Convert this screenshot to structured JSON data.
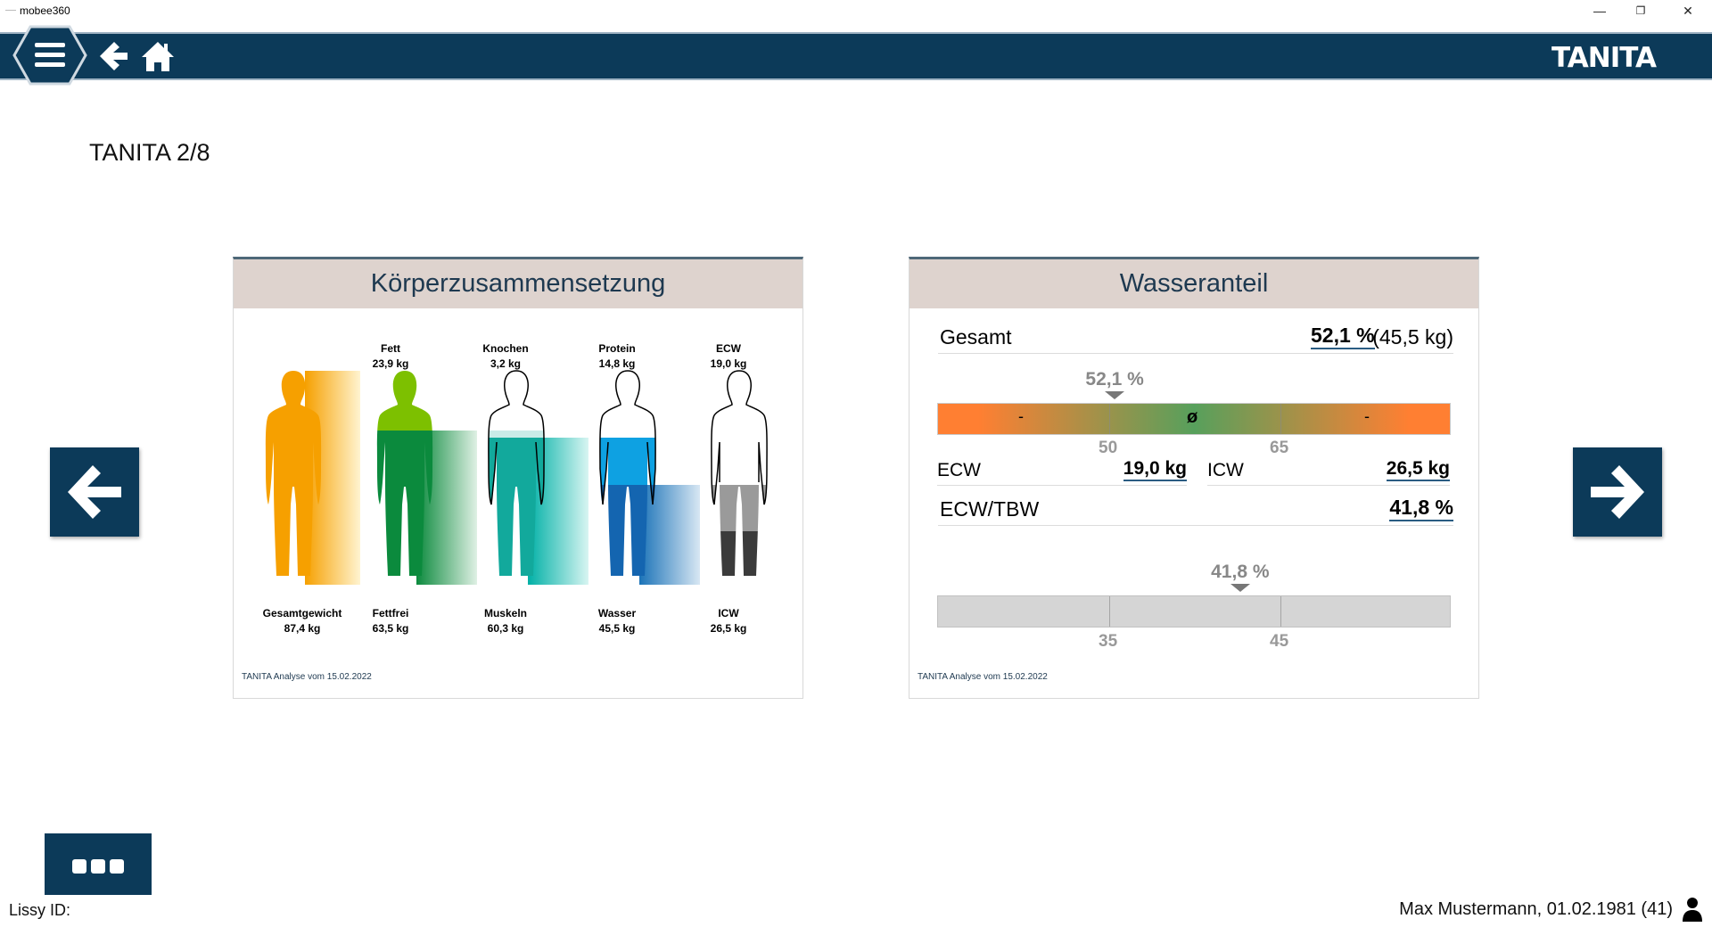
{
  "window": {
    "title": "mobee360",
    "minimize": "—",
    "restore": "❐",
    "close": "✕"
  },
  "header": {
    "brand": "TANITA"
  },
  "page": {
    "title": "TANITA 2/8"
  },
  "left_card": {
    "title": "Körperzusammensetzung",
    "top_labels": [
      {
        "name": "Fett",
        "value": "23,9 kg"
      },
      {
        "name": "Knochen",
        "value": "3,2 kg"
      },
      {
        "name": "Protein",
        "value": "14,8 kg"
      },
      {
        "name": "ECW",
        "value": "19,0 kg"
      }
    ],
    "bottom_labels": [
      {
        "name": "Gesamtgewicht",
        "value": "87,4 kg"
      },
      {
        "name": "Fettfrei",
        "value": "63,5 kg"
      },
      {
        "name": "Muskeln",
        "value": "60,3 kg"
      },
      {
        "name": "Wasser",
        "value": "45,5 kg"
      },
      {
        "name": "ICW",
        "value": "26,5 kg"
      }
    ],
    "footnote": "TANITA Analyse vom 15.02.2022"
  },
  "right_card": {
    "title": "Wasseranteil",
    "total": {
      "label": "Gesamt",
      "percent": "52,1 %",
      "kg": "(45,5 kg)"
    },
    "scale1": {
      "marker": "52,1 %",
      "minus_left": "-",
      "avg": "ø",
      "minus_right": "-",
      "tick1": "50",
      "tick2": "65",
      "value": 52.1,
      "min": 40,
      "max": 75
    },
    "ecw": {
      "label": "ECW",
      "value": "19,0 kg"
    },
    "icw": {
      "label": "ICW",
      "value": "26,5 kg"
    },
    "ratio": {
      "label": "ECW/TBW",
      "value": "41,8 %"
    },
    "scale2": {
      "marker": "41,8 %",
      "tick1": "35",
      "tick2": "45",
      "value": 41.8,
      "min": 30,
      "max": 50
    },
    "footnote": "TANITA Analyse vom 15.02.2022"
  },
  "footer": {
    "lissy_label": "Lissy ID:",
    "user": "Max Mustermann, 01.02.1981 (41)"
  }
}
